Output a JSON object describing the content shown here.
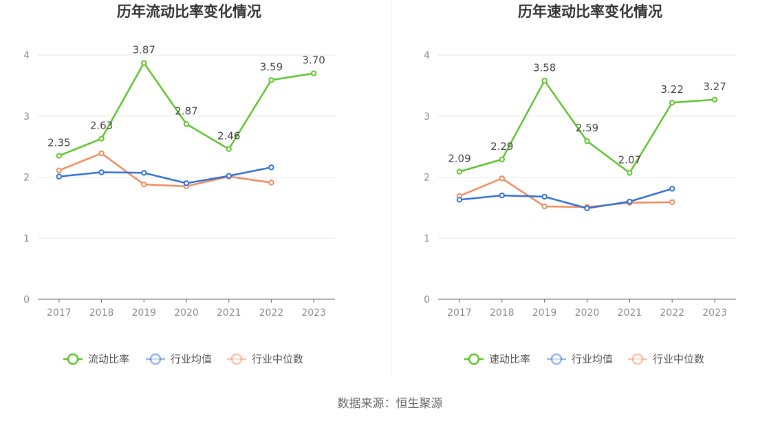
{
  "footer": {
    "source": "数据来源：恒生聚源"
  },
  "chart_data": [
    {
      "type": "line",
      "title": "历年流动比率变化情况",
      "categories": [
        "2017",
        "2018",
        "2019",
        "2020",
        "2021",
        "2022",
        "2023"
      ],
      "ylim": [
        0,
        4
      ],
      "yticks": [
        "0",
        "1",
        "2",
        "3",
        "4"
      ],
      "grid": true,
      "legend_position": "bottom",
      "series": [
        {
          "name": "流动比率",
          "color": "#5cc42b",
          "values": [
            2.35,
            2.63,
            3.87,
            2.87,
            2.46,
            3.59,
            3.7
          ],
          "labels": [
            "2.35",
            "2.63",
            "3.87",
            "2.87",
            "2.46",
            "3.59",
            "3.70"
          ]
        },
        {
          "name": "行业均值",
          "color": "#2f6fd8",
          "values": [
            2.01,
            2.08,
            2.07,
            1.9,
            2.02,
            2.16,
            null
          ]
        },
        {
          "name": "行业中位数",
          "color": "#f08a5d",
          "values": [
            2.11,
            2.39,
            1.88,
            1.85,
            2.01,
            1.91,
            null
          ]
        }
      ]
    },
    {
      "type": "line",
      "title": "历年速动比率变化情况",
      "categories": [
        "2017",
        "2018",
        "2019",
        "2020",
        "2021",
        "2022",
        "2023"
      ],
      "ylim": [
        0,
        4
      ],
      "yticks": [
        "0",
        "1",
        "2",
        "3",
        "4"
      ],
      "grid": true,
      "legend_position": "bottom",
      "series": [
        {
          "name": "速动比率",
          "color": "#5cc42b",
          "values": [
            2.09,
            2.29,
            3.58,
            2.59,
            2.07,
            3.22,
            3.27
          ],
          "labels": [
            "2.09",
            "2.29",
            "3.58",
            "2.59",
            "2.07",
            "3.22",
            "3.27"
          ]
        },
        {
          "name": "行业均值",
          "color": "#2f6fd8",
          "values": [
            1.63,
            1.7,
            1.68,
            1.49,
            1.6,
            1.81,
            null
          ]
        },
        {
          "name": "行业中位数",
          "color": "#f08a5d",
          "values": [
            1.69,
            1.98,
            1.52,
            1.51,
            1.58,
            1.59,
            null
          ]
        }
      ]
    }
  ]
}
